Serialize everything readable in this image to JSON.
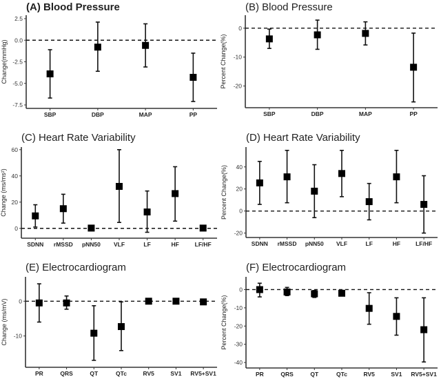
{
  "chart_data": [
    {
      "id": "A",
      "type": "errorbar",
      "title": "(A) Blood Pressure",
      "title_bold": true,
      "xlabel": "",
      "ylabel": "Change(mmHg)",
      "ylim": [
        -7.9,
        2.9
      ],
      "yticks": [
        2.5,
        0.0,
        -2.5,
        -5.0,
        -7.5
      ],
      "ytick_labels": [
        "2.5",
        "0.0",
        "-2.5",
        "-5.0",
        "-7.5"
      ],
      "reference_line": 0,
      "categories": [
        "SBP",
        "DBP",
        "MAP",
        "PP"
      ],
      "values": [
        -3.9,
        -0.8,
        -0.6,
        -4.3
      ],
      "ci_low": [
        -6.7,
        -3.6,
        -3.1,
        -7.1
      ],
      "ci_high": [
        -1.1,
        2.1,
        1.9,
        -1.5
      ]
    },
    {
      "id": "B",
      "type": "errorbar",
      "title": "(B) Blood Pressure",
      "title_bold": false,
      "xlabel": "",
      "ylabel": "Percent Change(%)",
      "ylim": [
        -27.5,
        4.5
      ],
      "yticks": [
        0,
        -10,
        -20
      ],
      "ytick_labels": [
        "0",
        "-10",
        "-20"
      ],
      "reference_line": 0,
      "categories": [
        "SBP",
        "DBP",
        "MAP",
        "PP"
      ],
      "values": [
        -3.7,
        -2.3,
        -1.8,
        -13.5
      ],
      "ci_low": [
        -7.0,
        -7.3,
        -5.8,
        -25.5
      ],
      "ci_high": [
        -0.3,
        2.8,
        2.2,
        -1.7
      ]
    },
    {
      "id": "C",
      "type": "errorbar",
      "title": "(C) Heart Rate Variability",
      "title_bold": false,
      "xlabel": "",
      "ylabel": "Change (ms/ms²)",
      "ylim": [
        -7.5,
        62
      ],
      "yticks": [
        60,
        40,
        20,
        0
      ],
      "ytick_labels": [
        "60",
        "40",
        "20",
        "0"
      ],
      "reference_line": 0,
      "categories": [
        "SDNN",
        "rMSSD",
        "pNN50",
        "VLF",
        "LF",
        "HF",
        "LF/HF"
      ],
      "values": [
        9.5,
        15.0,
        0.2,
        32.0,
        12.5,
        26.5,
        0.2
      ],
      "ci_low": [
        1.0,
        4.0,
        0.0,
        4.5,
        -3.0,
        5.5,
        0.0
      ],
      "ci_high": [
        18.0,
        26.0,
        0.4,
        60.0,
        28.5,
        47.0,
        0.4
      ]
    },
    {
      "id": "D",
      "type": "errorbar",
      "title": "(D) Heart Rate Variability",
      "title_bold": false,
      "xlabel": "",
      "ylabel": "Percent Change(%)",
      "ylim": [
        -24,
        58
      ],
      "yticks": [
        40,
        20,
        0,
        -20
      ],
      "ytick_labels": [
        "40",
        "20",
        "0",
        "-20"
      ],
      "reference_line": 0,
      "categories": [
        "SDNN",
        "rMSSD",
        "pNN50",
        "VLF",
        "LF",
        "HF",
        "LF/HF"
      ],
      "values": [
        25.5,
        31.0,
        18.0,
        34.0,
        8.5,
        31.0,
        6.0
      ],
      "ci_low": [
        6.0,
        7.5,
        -6.0,
        13.0,
        -8.0,
        7.5,
        -20.0
      ],
      "ci_high": [
        45.0,
        55.0,
        42.0,
        55.0,
        25.0,
        55.0,
        32.0
      ]
    },
    {
      "id": "E",
      "type": "errorbar",
      "title": "(E) Electrocardiogram",
      "title_bold": false,
      "xlabel": "",
      "ylabel": "Change (ms/mV)",
      "ylim": [
        -19,
        7
      ],
      "yticks": [
        0,
        -10
      ],
      "ytick_labels": [
        "0",
        "-10"
      ],
      "reference_line": 0,
      "categories": [
        "PR",
        "QRS",
        "QT",
        "QTc",
        "RV5",
        "SV1",
        "RV5+SV1"
      ],
      "values": [
        -0.5,
        -0.5,
        -9.2,
        -7.3,
        0.0,
        0.0,
        -0.2
      ],
      "ci_low": [
        -6.0,
        -2.3,
        -17.0,
        -14.2,
        -0.1,
        -0.1,
        -0.3
      ],
      "ci_high": [
        5.0,
        1.5,
        -1.3,
        -0.2,
        0.1,
        0.1,
        -0.1
      ]
    },
    {
      "id": "F",
      "type": "errorbar",
      "title": "(F) Electrocardiogram",
      "title_bold": false,
      "xlabel": "",
      "ylabel": "Percent Change(%)",
      "ylim": [
        -43,
        7
      ],
      "yticks": [
        0,
        -10,
        -20,
        -30,
        -40
      ],
      "ytick_labels": [
        "0",
        "-10",
        "-20",
        "-30",
        "-40"
      ],
      "reference_line": 0,
      "categories": [
        "PR",
        "QRS",
        "QT",
        "QTc",
        "RV5",
        "SV1",
        "RV5+SV1"
      ],
      "values": [
        0.0,
        -1.3,
        -2.3,
        -2.0,
        -10.3,
        -14.7,
        -22.0
      ],
      "ci_low": [
        -4.0,
        -3.3,
        -4.3,
        -3.3,
        -19.0,
        -25.0,
        -39.7
      ],
      "ci_high": [
        3.5,
        1.2,
        -0.5,
        -0.5,
        -1.7,
        -4.5,
        -4.5
      ]
    }
  ]
}
